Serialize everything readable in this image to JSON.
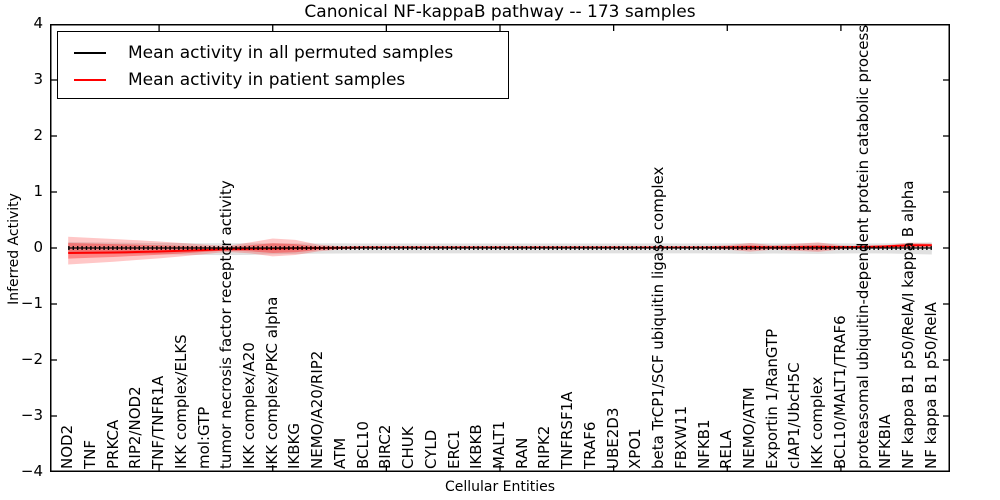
{
  "chart_data": {
    "type": "line",
    "title": "Canonical NF-kappaB pathway -- 173 samples",
    "xlabel": "Cellular Entities",
    "ylabel": "Inferred Activity",
    "xlim": [
      0.2,
      39.8
    ],
    "ylim": [
      -4,
      4
    ],
    "yticks": [
      4,
      3,
      2,
      1,
      0,
      -1,
      -2,
      -3,
      -4
    ],
    "yticklabels": [
      "4",
      "3",
      "2",
      "1",
      "0",
      "−1",
      "−2",
      "−3",
      "−4"
    ],
    "xticks_major": [
      5,
      10,
      15,
      20,
      25,
      30,
      35
    ],
    "grid": false,
    "legend_position": "upper left",
    "categories": [
      "NOD2",
      "TNF",
      "PRKCA",
      "RIP2/NOD2",
      "TNF/TNFR1A",
      "IKK complex/ELKS",
      "mol:GTP",
      "tumor necrosis factor receptor activity",
      "IKK complex/A20",
      "IKK complex/PKC alpha",
      "IKBKG",
      "NEMO/A20/RIP2",
      "ATM",
      "BCL10",
      "BIRC2",
      "CHUK",
      "CYLD",
      "ERC1",
      "IKBKB",
      "MALT1",
      "RAN",
      "RIPK2",
      "TNFRSF1A",
      "TRAF6",
      "UBE2D3",
      "XPO1",
      "beta TrCP1/SCF ubiquitin ligase complex",
      "FBXW11",
      "NFKB1",
      "RELA",
      "NEMO/ATM",
      "Exportin 1/RanGTP",
      "cIAP1/UbcH5C",
      "IKK complex",
      "BCL10/MALT1/TRAF6",
      "proteasomal ubiquitin-dependent protein catabolic process",
      "NFKBIA",
      "NF kappa B1 p50/RelA/I kappa B alpha",
      "NF kappa B1 p50/RelA"
    ],
    "series": [
      {
        "name": "Mean activity in all permuted samples",
        "color": "#000000",
        "style": "solid-with-tick-markers",
        "values": [
          0,
          0,
          0,
          0,
          0,
          0,
          0,
          0,
          0,
          0,
          0,
          0,
          0,
          0,
          0,
          0,
          0,
          0,
          0,
          0,
          0,
          0,
          0,
          0,
          0,
          0,
          0,
          0,
          0,
          0,
          0,
          0,
          0,
          0,
          0,
          0,
          0,
          0,
          0
        ]
      },
      {
        "name": "Mean activity in patient samples",
        "color": "#ff0000",
        "style": "solid",
        "values": [
          -0.09,
          -0.085,
          -0.08,
          -0.072,
          -0.063,
          -0.05,
          -0.035,
          -0.022,
          -0.015,
          -0.01,
          -0.005,
          0.0,
          0.005,
          0.008,
          0.008,
          0.008,
          0.008,
          0.008,
          0.008,
          0.008,
          0.008,
          0.008,
          0.008,
          0.008,
          0.008,
          0.008,
          0.01,
          0.01,
          0.01,
          0.012,
          0.015,
          0.012,
          0.015,
          0.018,
          0.015,
          0.02,
          0.03,
          0.048,
          0.05
        ]
      }
    ],
    "bands": [
      {
        "name": "permuted-samples-range",
        "color": "rgba(0,0,0,0.12)",
        "top": [
          0.105,
          0.1,
          0.095,
          0.092,
          0.09,
          0.088,
          0.085,
          0.085,
          0.085,
          0.085,
          0.082,
          0.082,
          0.082,
          0.08,
          0.08,
          0.08,
          0.08,
          0.08,
          0.08,
          0.08,
          0.08,
          0.08,
          0.08,
          0.08,
          0.08,
          0.08,
          0.082,
          0.08,
          0.08,
          0.082,
          0.088,
          0.082,
          0.082,
          0.088,
          0.082,
          0.08,
          0.082,
          0.092,
          0.1
        ],
        "bottom": [
          -0.105,
          -0.105,
          -0.105,
          -0.108,
          -0.112,
          -0.118,
          -0.125,
          -0.128,
          -0.122,
          -0.112,
          -0.105,
          -0.1,
          -0.098,
          -0.095,
          -0.095,
          -0.095,
          -0.095,
          -0.095,
          -0.095,
          -0.095,
          -0.095,
          -0.095,
          -0.095,
          -0.095,
          -0.095,
          -0.095,
          -0.095,
          -0.095,
          -0.095,
          -0.098,
          -0.105,
          -0.098,
          -0.1,
          -0.105,
          -0.098,
          -0.095,
          -0.098,
          -0.108,
          -0.115
        ]
      },
      {
        "name": "permuted-samples-inner-gap",
        "color": "#ffffff",
        "top": [
          0.028,
          0.028,
          0.028,
          0.028,
          0.028,
          0.028,
          0.028,
          0.028,
          0.028,
          0.028,
          0.028,
          0.028,
          0.028,
          0.028,
          0.028,
          0.028,
          0.028,
          0.028,
          0.028,
          0.028,
          0.028,
          0.028,
          0.028,
          0.028,
          0.028,
          0.028,
          0.028,
          0.028,
          0.028,
          0.028,
          0.028,
          0.028,
          0.028,
          0.028,
          0.028,
          0.028,
          0.028,
          0.028,
          0.028
        ],
        "bottom": [
          -0.028,
          -0.028,
          -0.028,
          -0.028,
          -0.028,
          -0.028,
          -0.028,
          -0.028,
          -0.028,
          -0.028,
          -0.028,
          -0.028,
          -0.028,
          -0.028,
          -0.028,
          -0.028,
          -0.028,
          -0.028,
          -0.028,
          -0.028,
          -0.028,
          -0.028,
          -0.028,
          -0.028,
          -0.028,
          -0.028,
          -0.028,
          -0.028,
          -0.028,
          -0.028,
          -0.028,
          -0.028,
          -0.028,
          -0.028,
          -0.028,
          -0.028,
          -0.028,
          -0.028,
          -0.028
        ]
      },
      {
        "name": "patient-samples-range-outer",
        "color": "rgba(255,0,0,0.22)",
        "top": [
          0.2,
          0.18,
          0.16,
          0.14,
          0.115,
          0.09,
          0.06,
          0.035,
          0.1,
          0.17,
          0.145,
          0.06,
          0.03,
          0.022,
          0.02,
          0.02,
          0.02,
          0.02,
          0.02,
          0.02,
          0.02,
          0.02,
          0.02,
          0.02,
          0.02,
          0.02,
          0.022,
          0.025,
          0.03,
          0.05,
          0.09,
          0.05,
          0.075,
          0.1,
          0.05,
          0.03,
          0.05,
          0.095,
          0.08
        ],
        "bottom": [
          -0.295,
          -0.27,
          -0.245,
          -0.215,
          -0.185,
          -0.15,
          -0.11,
          -0.07,
          -0.095,
          -0.15,
          -0.125,
          -0.06,
          -0.025,
          -0.012,
          -0.01,
          -0.01,
          -0.01,
          -0.01,
          -0.01,
          -0.01,
          -0.01,
          -0.01,
          -0.01,
          -0.01,
          -0.01,
          -0.01,
          -0.01,
          -0.01,
          -0.012,
          -0.03,
          -0.065,
          -0.03,
          -0.05,
          -0.07,
          -0.025,
          -0.01,
          -0.005,
          -0.015,
          0.01
        ]
      },
      {
        "name": "patient-samples-range-inner",
        "color": "rgba(255,0,0,0.33)",
        "top": [
          0.09,
          0.08,
          0.07,
          0.06,
          0.05,
          0.038,
          0.025,
          0.015,
          0.05,
          0.085,
          0.07,
          0.03,
          0.018,
          0.014,
          0.013,
          0.013,
          0.013,
          0.013,
          0.013,
          0.013,
          0.013,
          0.013,
          0.013,
          0.013,
          0.013,
          0.013,
          0.014,
          0.015,
          0.018,
          0.028,
          0.048,
          0.028,
          0.04,
          0.055,
          0.028,
          0.022,
          0.035,
          0.065,
          0.062
        ],
        "bottom": [
          -0.19,
          -0.175,
          -0.16,
          -0.14,
          -0.12,
          -0.098,
          -0.07,
          -0.045,
          -0.058,
          -0.09,
          -0.075,
          -0.035,
          -0.015,
          -0.008,
          -0.006,
          -0.006,
          -0.006,
          -0.006,
          -0.006,
          -0.006,
          -0.006,
          -0.006,
          -0.006,
          -0.006,
          -0.006,
          -0.006,
          -0.006,
          -0.006,
          -0.008,
          -0.015,
          -0.035,
          -0.015,
          -0.028,
          -0.04,
          -0.012,
          -0.002,
          0.005,
          0.02,
          0.03
        ]
      }
    ],
    "colors": {
      "axis": "#000000",
      "background": "#ffffff",
      "permuted_line": "#000000",
      "patient_line": "#ff0000"
    }
  },
  "legend": {
    "items": [
      {
        "label": "Mean activity in all permuted samples",
        "color": "#000000"
      },
      {
        "label": "Mean activity in patient samples",
        "color": "#ff0000"
      }
    ]
  }
}
